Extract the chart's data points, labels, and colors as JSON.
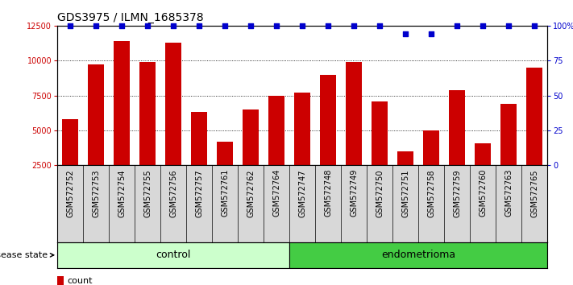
{
  "title": "GDS3975 / ILMN_1685378",
  "samples": [
    "GSM572752",
    "GSM572753",
    "GSM572754",
    "GSM572755",
    "GSM572756",
    "GSM572757",
    "GSM572761",
    "GSM572762",
    "GSM572764",
    "GSM572747",
    "GSM572748",
    "GSM572749",
    "GSM572750",
    "GSM572751",
    "GSM572758",
    "GSM572759",
    "GSM572760",
    "GSM572763",
    "GSM572765"
  ],
  "counts": [
    5800,
    9700,
    11400,
    9900,
    11300,
    6300,
    4200,
    6500,
    7500,
    7700,
    9000,
    9900,
    7100,
    3500,
    5000,
    7900,
    4100,
    6900,
    9500
  ],
  "percentile_ranks": [
    100,
    100,
    100,
    100,
    100,
    100,
    100,
    100,
    100,
    100,
    100,
    100,
    100,
    94,
    94,
    100,
    100,
    100,
    100
  ],
  "control_count": 9,
  "endometrioma_count": 10,
  "control_color": "#ccffcc",
  "endometrioma_color": "#44cc44",
  "ylim_left": [
    2500,
    12500
  ],
  "ylim_right": [
    0,
    100
  ],
  "yticks_left": [
    2500,
    5000,
    7500,
    10000,
    12500
  ],
  "yticks_right": [
    0,
    25,
    50,
    75,
    100
  ],
  "ytick_labels_right": [
    "0",
    "25",
    "50",
    "75",
    "100%"
  ],
  "bar_color": "#cc0000",
  "dot_color": "#0000cc",
  "background_plot": "#ffffff",
  "xticklabel_bg": "#d8d8d8",
  "title_fontsize": 10,
  "tick_fontsize": 7,
  "label_fontsize": 7,
  "group_fontsize": 9,
  "legend_fontsize": 8,
  "disease_state_label": "disease state"
}
